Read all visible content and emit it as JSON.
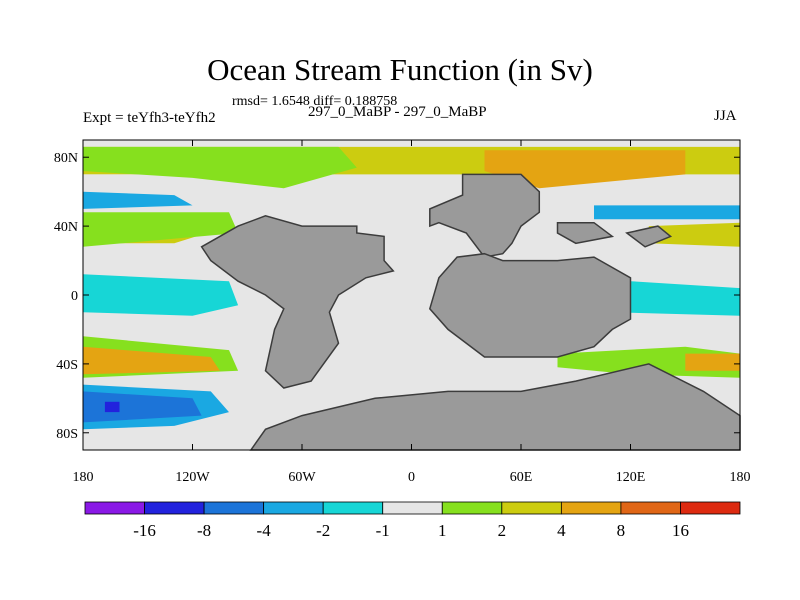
{
  "chart_data": {
    "type": "contour-map",
    "title": "Ocean Stream Function (in Sv)",
    "stats": "rmsd= 1.6548  diff= 0.188758",
    "left_label": "Expt = teYfh3-teYfh2",
    "center_label": "297_0_MaBP - 297_0_MaBP",
    "right_label": "JJA",
    "x_ticks": [
      {
        "value": -180,
        "label": "180"
      },
      {
        "value": -120,
        "label": "120W"
      },
      {
        "value": -60,
        "label": "60W"
      },
      {
        "value": 0,
        "label": "0"
      },
      {
        "value": 60,
        "label": "60E"
      },
      {
        "value": 120,
        "label": "120E"
      },
      {
        "value": 180,
        "label": "180"
      }
    ],
    "y_ticks": [
      {
        "value": 80,
        "label": "80N"
      },
      {
        "value": 40,
        "label": "40N"
      },
      {
        "value": 0,
        "label": "0"
      },
      {
        "value": -40,
        "label": "40S"
      },
      {
        "value": -80,
        "label": "80S"
      }
    ],
    "xlim": [
      -180,
      180
    ],
    "ylim": [
      -90,
      90
    ],
    "land_color": "#9a9a9a",
    "zero_color": "#e6e6e6",
    "colorbar": {
      "levels": [
        "-16",
        "-8",
        "-4",
        "-2",
        "-1",
        "1",
        "2",
        "4",
        "8",
        "16"
      ],
      "colors": [
        "#8a19e6",
        "#2222dd",
        "#1c74d8",
        "#1aa8e2",
        "#17d6d6",
        "#e6e6e6",
        "#86e01e",
        "#cccc10",
        "#e4a412",
        "#e06616",
        "#dd2a10"
      ]
    },
    "fields": [
      {
        "name": "arctic-band",
        "level": 7,
        "points": [
          [
            -180,
            86
          ],
          [
            180,
            86
          ],
          [
            180,
            70
          ],
          [
            -180,
            70
          ]
        ]
      },
      {
        "name": "arctic-clear",
        "level": 5,
        "points": [
          [
            -180,
            70
          ],
          [
            -60,
            70
          ],
          [
            -60,
            60
          ],
          [
            -180,
            60
          ]
        ]
      },
      {
        "name": "n-pacific-green",
        "level": 6,
        "points": [
          [
            -180,
            86
          ],
          [
            -40,
            86
          ],
          [
            -30,
            74
          ],
          [
            -70,
            62
          ],
          [
            -120,
            68
          ],
          [
            -180,
            72
          ]
        ]
      },
      {
        "name": "n-pacific-cyan",
        "level": 3,
        "points": [
          [
            -180,
            60
          ],
          [
            -130,
            58
          ],
          [
            -120,
            52
          ],
          [
            -180,
            50
          ]
        ]
      },
      {
        "name": "n-pacific-yellow",
        "level": 7,
        "points": [
          [
            -180,
            42
          ],
          [
            -110,
            46
          ],
          [
            -100,
            40
          ],
          [
            -130,
            30
          ],
          [
            -180,
            30
          ]
        ]
      },
      {
        "name": "n-pacific-green2",
        "level": 6,
        "points": [
          [
            -180,
            48
          ],
          [
            -100,
            48
          ],
          [
            -95,
            36
          ],
          [
            -180,
            28
          ]
        ]
      },
      {
        "name": "equatorial-cyan",
        "level": 4,
        "points": [
          [
            -180,
            12
          ],
          [
            -100,
            8
          ],
          [
            -95,
            -6
          ],
          [
            -120,
            -12
          ],
          [
            -180,
            -10
          ]
        ]
      },
      {
        "name": "s-pacific-green",
        "level": 6,
        "points": [
          [
            -180,
            -24
          ],
          [
            -100,
            -32
          ],
          [
            -95,
            -44
          ],
          [
            -180,
            -48
          ]
        ]
      },
      {
        "name": "s-pacific-orange",
        "level": 8,
        "points": [
          [
            -180,
            -30
          ],
          [
            -110,
            -36
          ],
          [
            -105,
            -44
          ],
          [
            -180,
            -46
          ]
        ]
      },
      {
        "name": "s-pacific-blue-outer",
        "level": 3,
        "points": [
          [
            -180,
            -52
          ],
          [
            -110,
            -56
          ],
          [
            -100,
            -68
          ],
          [
            -130,
            -76
          ],
          [
            -180,
            -78
          ]
        ]
      },
      {
        "name": "s-pacific-blue",
        "level": 2,
        "points": [
          [
            -180,
            -56
          ],
          [
            -120,
            -60
          ],
          [
            -115,
            -70
          ],
          [
            -180,
            -74
          ]
        ]
      },
      {
        "name": "s-pacific-core",
        "level": 1,
        "points": [
          [
            -168,
            -62
          ],
          [
            -160,
            -62
          ],
          [
            -160,
            -68
          ],
          [
            -168,
            -68
          ]
        ]
      },
      {
        "name": "eurasia-orange",
        "level": 8,
        "points": [
          [
            40,
            84
          ],
          [
            150,
            84
          ],
          [
            150,
            70
          ],
          [
            70,
            62
          ],
          [
            40,
            72
          ]
        ]
      },
      {
        "name": "w-pacific-cyan",
        "level": 3,
        "points": [
          [
            100,
            52
          ],
          [
            180,
            52
          ],
          [
            180,
            44
          ],
          [
            100,
            44
          ]
        ]
      },
      {
        "name": "w-pacific-yellow",
        "level": 7,
        "points": [
          [
            130,
            40
          ],
          [
            180,
            42
          ],
          [
            180,
            28
          ],
          [
            130,
            30
          ]
        ]
      },
      {
        "name": "indo-cyan",
        "level": 4,
        "points": [
          [
            40,
            -12
          ],
          [
            110,
            -10
          ],
          [
            180,
            -12
          ],
          [
            180,
            4
          ],
          [
            120,
            8
          ],
          [
            40,
            -4
          ]
        ]
      },
      {
        "name": "se-indian-green",
        "level": 6,
        "points": [
          [
            80,
            -34
          ],
          [
            150,
            -30
          ],
          [
            180,
            -34
          ],
          [
            180,
            -48
          ],
          [
            120,
            -46
          ],
          [
            80,
            -42
          ]
        ]
      },
      {
        "name": "se-orange",
        "level": 8,
        "points": [
          [
            150,
            -34
          ],
          [
            180,
            -34
          ],
          [
            180,
            -44
          ],
          [
            150,
            -44
          ]
        ]
      }
    ],
    "land": [
      {
        "name": "americas",
        "points": [
          [
            -60,
            40
          ],
          [
            -30,
            40
          ],
          [
            -30,
            36
          ],
          [
            -15,
            34
          ],
          [
            -15,
            20
          ],
          [
            -10,
            14
          ],
          [
            -25,
            10
          ],
          [
            -40,
            0
          ],
          [
            -45,
            -10
          ],
          [
            -40,
            -28
          ],
          [
            -55,
            -50
          ],
          [
            -70,
            -54
          ],
          [
            -80,
            -44
          ],
          [
            -75,
            -20
          ],
          [
            -70,
            -8
          ],
          [
            -80,
            0
          ],
          [
            -95,
            8
          ],
          [
            -110,
            20
          ],
          [
            -115,
            28
          ],
          [
            -95,
            40
          ],
          [
            -80,
            46
          ]
        ]
      },
      {
        "name": "greenland",
        "points": [
          [
            28,
            70
          ],
          [
            60,
            70
          ],
          [
            70,
            60
          ],
          [
            70,
            48
          ],
          [
            60,
            40
          ],
          [
            55,
            30
          ],
          [
            50,
            24
          ],
          [
            40,
            22
          ],
          [
            30,
            36
          ],
          [
            15,
            42
          ],
          [
            10,
            40
          ],
          [
            10,
            50
          ],
          [
            28,
            58
          ]
        ]
      },
      {
        "name": "africa-eurasia",
        "points": [
          [
            40,
            24
          ],
          [
            50,
            20
          ],
          [
            80,
            20
          ],
          [
            100,
            22
          ],
          [
            120,
            10
          ],
          [
            120,
            -14
          ],
          [
            110,
            -20
          ],
          [
            100,
            -30
          ],
          [
            80,
            -36
          ],
          [
            40,
            -36
          ],
          [
            20,
            -20
          ],
          [
            10,
            -8
          ],
          [
            15,
            10
          ],
          [
            25,
            22
          ]
        ]
      },
      {
        "name": "antarctica",
        "points": [
          [
            -88,
            -90
          ],
          [
            180,
            -90
          ],
          [
            180,
            -70
          ],
          [
            160,
            -56
          ],
          [
            130,
            -40
          ],
          [
            90,
            -50
          ],
          [
            60,
            -56
          ],
          [
            20,
            -56
          ],
          [
            -20,
            -60
          ],
          [
            -60,
            -70
          ],
          [
            -80,
            -78
          ]
        ]
      },
      {
        "name": "asia-islands",
        "points": [
          [
            80,
            42
          ],
          [
            100,
            42
          ],
          [
            110,
            34
          ],
          [
            90,
            30
          ],
          [
            80,
            36
          ]
        ]
      },
      {
        "name": "ne-blocks",
        "points": [
          [
            118,
            36
          ],
          [
            135,
            40
          ],
          [
            142,
            34
          ],
          [
            128,
            28
          ]
        ]
      }
    ]
  }
}
